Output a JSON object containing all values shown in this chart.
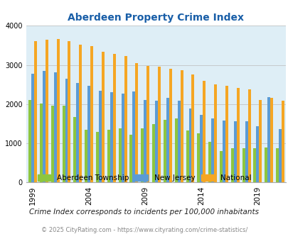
{
  "title": "Aberdeen Property Crime Index",
  "subtitle": "Crime Index corresponds to incidents per 100,000 inhabitants",
  "footer": "© 2025 CityRating.com - https://www.cityrating.com/crime-statistics/",
  "years": [
    1999,
    2000,
    2001,
    2002,
    2003,
    2004,
    2005,
    2006,
    2007,
    2008,
    2009,
    2010,
    2011,
    2012,
    2013,
    2014,
    2015,
    2016,
    2017,
    2018,
    2019,
    2020,
    2021
  ],
  "aberdeen": [
    2100,
    2020,
    1970,
    1960,
    1670,
    1340,
    1300,
    1350,
    1390,
    1220,
    1380,
    1490,
    1600,
    1640,
    1330,
    1260,
    1040,
    800,
    870,
    870,
    880,
    900,
    880
  ],
  "new_jersey": [
    2780,
    2840,
    2820,
    2640,
    2540,
    2460,
    2350,
    2310,
    2260,
    2330,
    2100,
    2090,
    2160,
    2090,
    1890,
    1730,
    1640,
    1590,
    1560,
    1560,
    1430,
    2170,
    1360
  ],
  "national": [
    3600,
    3650,
    3660,
    3600,
    3520,
    3480,
    3340,
    3280,
    3220,
    3050,
    2980,
    2950,
    2900,
    2860,
    2750,
    2600,
    2500,
    2470,
    2420,
    2380,
    2100,
    2160,
    2090
  ],
  "aberdeen_color": "#8dc63f",
  "nj_color": "#5b9bd5",
  "national_color": "#f5a623",
  "bg_color": "#deeef6",
  "title_color": "#1a5fa8",
  "ylim": [
    0,
    4000
  ],
  "yticks": [
    0,
    1000,
    2000,
    3000,
    4000
  ],
  "xlabel_years": [
    1999,
    2004,
    2009,
    2014,
    2019
  ],
  "grid_color": "#bbbbbb",
  "legend_labels": [
    "Aberdeen Township",
    "New Jersey",
    "National"
  ],
  "subtitle_color": "#222222",
  "footer_color": "#888888"
}
